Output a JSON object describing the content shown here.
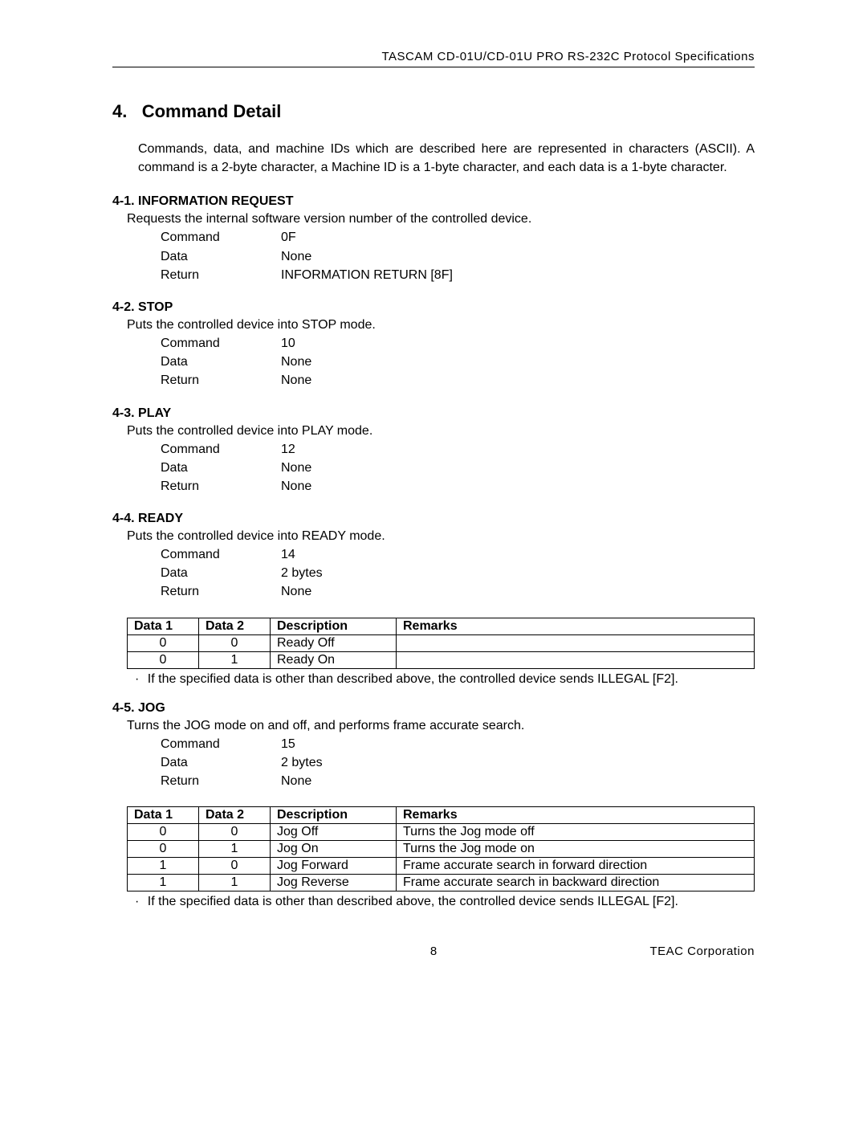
{
  "header": {
    "running_head": "TASCAM CD-01U/CD-01U PRO RS-232C Protocol Specifications"
  },
  "section": {
    "number": "4.",
    "title": "Command Detail",
    "intro": "Commands, data, and machine IDs which are described here are represented in characters (ASCII). A command is a 2-byte character, a Machine ID is a 1-byte character, and each data is a 1-byte character."
  },
  "commands": {
    "info_request": {
      "heading": "4-1. INFORMATION REQUEST",
      "desc": "Requests the internal software version number of the controlled device.",
      "command": "0F",
      "data": "None",
      "return": "INFORMATION RETURN [8F]"
    },
    "stop": {
      "heading": "4-2. STOP",
      "desc": "Puts the controlled device into STOP mode.",
      "command": "10",
      "data": "None",
      "return": "None"
    },
    "play": {
      "heading": "4-3. PLAY",
      "desc": "Puts the controlled device into PLAY mode.",
      "command": "12",
      "data": "None",
      "return": "None"
    },
    "ready": {
      "heading": "4-4. READY",
      "desc": "Puts the controlled device into READY mode.",
      "command": "14",
      "data": "2 bytes",
      "return": "None",
      "table": {
        "headers": {
          "d1": "Data 1",
          "d2": "Data 2",
          "desc": "Description",
          "rem": "Remarks"
        },
        "rows": [
          {
            "d1": "0",
            "d2": "0",
            "desc": "Ready Off",
            "rem": ""
          },
          {
            "d1": "0",
            "d2": "1",
            "desc": "Ready On",
            "rem": ""
          }
        ]
      },
      "note": "If the specified data is other than described above, the controlled device sends ILLEGAL [F2]."
    },
    "jog": {
      "heading": "4-5. JOG",
      "desc": "Turns the JOG mode on and off, and performs frame accurate search.",
      "command": "15",
      "data": "2 bytes",
      "return": "None",
      "table": {
        "headers": {
          "d1": "Data 1",
          "d2": "Data 2",
          "desc": "Description",
          "rem": "Remarks"
        },
        "rows": [
          {
            "d1": "0",
            "d2": "0",
            "desc": "Jog Off",
            "rem": "Turns the Jog mode off"
          },
          {
            "d1": "0",
            "d2": "1",
            "desc": "Jog On",
            "rem": "Turns the Jog mode on"
          },
          {
            "d1": "1",
            "d2": "0",
            "desc": "Jog Forward",
            "rem": "Frame accurate search in forward direction"
          },
          {
            "d1": "1",
            "d2": "1",
            "desc": "Jog Reverse",
            "rem": "Frame accurate search in backward direction"
          }
        ]
      },
      "note": "If the specified data is other than described above, the controlled device sends ILLEGAL [F2]."
    }
  },
  "labels": {
    "command": "Command",
    "data": "Data",
    "return": "Return",
    "bullet": "·"
  },
  "footer": {
    "page": "8",
    "corp": "TEAC Corporation"
  }
}
